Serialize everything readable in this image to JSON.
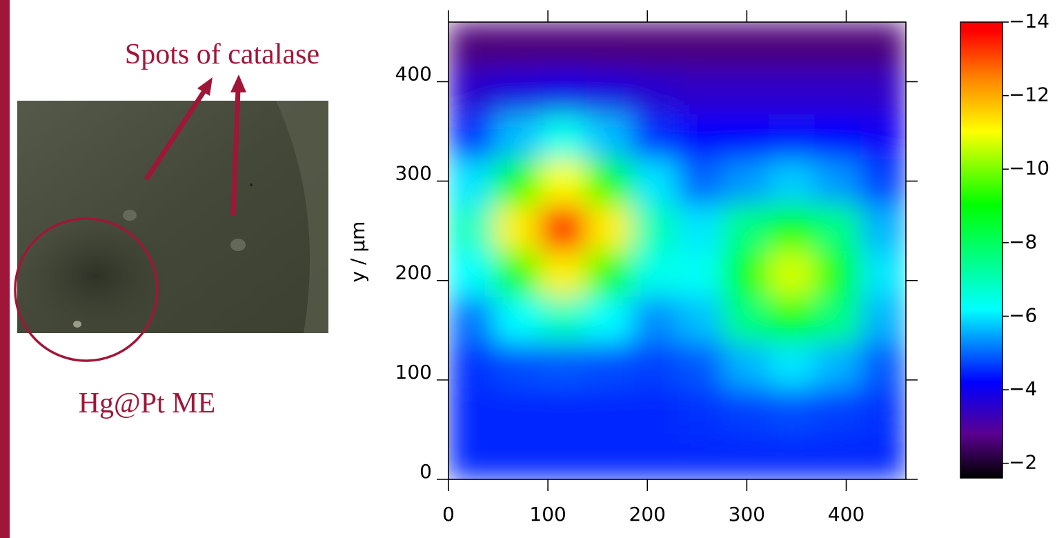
{
  "photo_labels": {
    "spots": "Spots of catalase",
    "electrode": "Hg@Pt ME"
  },
  "chart_data": {
    "type": "heatmap",
    "y_label": "y / μm",
    "x": [
      23,
      69,
      115,
      161,
      207,
      253,
      299,
      345,
      391,
      437
    ],
    "y": [
      23,
      69,
      115,
      161,
      207,
      253,
      299,
      345,
      391,
      437
    ],
    "z": [
      [
        -4.5,
        -4.5,
        -4.5,
        -4.5,
        -4.5,
        -4.5,
        -4.5,
        -4.5,
        -4.5,
        -4.5
      ],
      [
        -4.5,
        -4.5,
        -4.5,
        -4.5,
        -4.5,
        -4.6,
        -4.7,
        -4.8,
        -4.7,
        -4.6
      ],
      [
        -4.6,
        -4.8,
        -4.9,
        -4.8,
        -4.7,
        -4.9,
        -5.6,
        -6.0,
        -5.6,
        -4.9
      ],
      [
        -5.1,
        -6.2,
        -6.9,
        -6.2,
        -5.3,
        -5.7,
        -7.6,
        -8.9,
        -7.6,
        -5.6
      ],
      [
        -6.2,
        -9.2,
        -11.2,
        -9.2,
        -6.4,
        -6.3,
        -8.9,
        -10.7,
        -8.9,
        -6.0
      ],
      [
        -6.9,
        -11.2,
        -14.0,
        -11.2,
        -7.0,
        -6.0,
        -7.6,
        -8.9,
        -7.6,
        -5.6
      ],
      [
        -6.0,
        -9.0,
        -11.0,
        -9.0,
        -6.0,
        -5.0,
        -5.4,
        -5.8,
        -5.4,
        -4.7
      ],
      [
        -4.6,
        -5.7,
        -6.4,
        -5.7,
        -4.6,
        -4.2,
        -4.2,
        -4.3,
        -4.2,
        -4.1
      ],
      [
        -3.6,
        -3.8,
        -3.9,
        -3.8,
        -3.6,
        -3.5,
        -3.5,
        -3.5,
        -3.5,
        -3.5
      ],
      [
        -2.6,
        -2.6,
        -2.6,
        -2.6,
        -2.6,
        -2.6,
        -2.6,
        -2.6,
        -2.6,
        -2.6
      ]
    ],
    "xlim": [
      0,
      460
    ],
    "ylim": [
      0,
      460
    ],
    "xticks": [
      0,
      100,
      200,
      300,
      400
    ],
    "yticks": [
      0,
      100,
      200,
      300,
      400
    ],
    "clim": [
      -1.6,
      -14
    ],
    "cticks": [
      {
        "value": -2,
        "label": "−2"
      },
      {
        "value": -4,
        "label": "−4"
      },
      {
        "value": -6,
        "label": "−6"
      },
      {
        "value": -8,
        "label": "−8"
      },
      {
        "value": -10,
        "label": "−10"
      },
      {
        "value": -12,
        "label": "−12"
      },
      {
        "value": -14,
        "label": "−14"
      }
    ]
  }
}
